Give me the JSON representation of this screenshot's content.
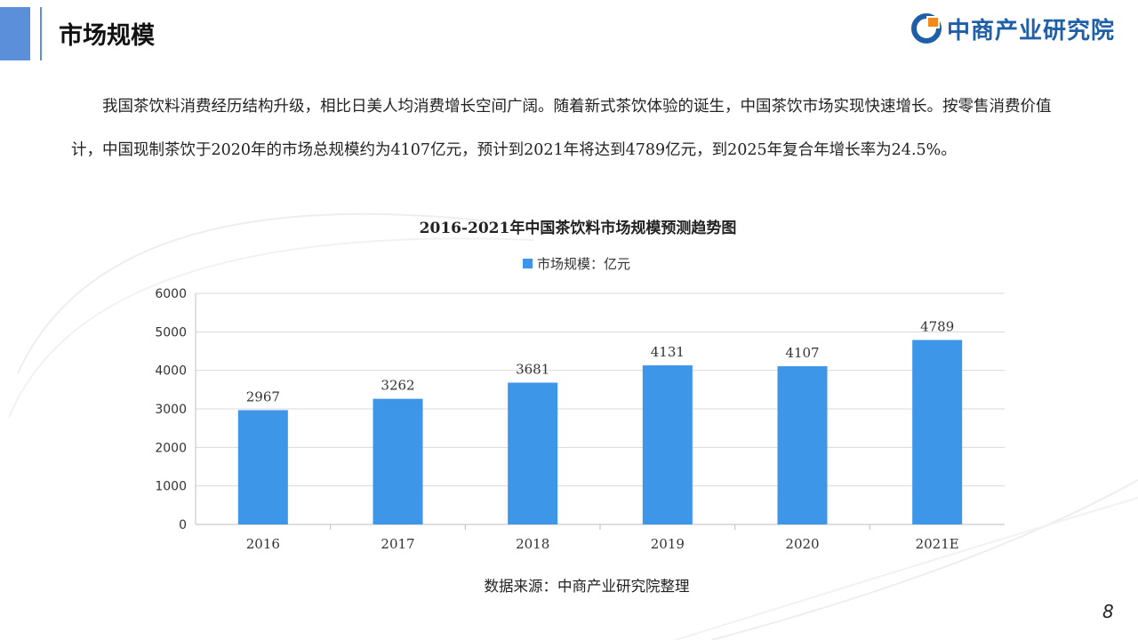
{
  "header": {
    "title": "市场规模",
    "logo_text": "中商产业研究院"
  },
  "intro_text": "我国茶饮料消费经历结构升级，相比日美人均消费增长空间广阔。随着新式茶饮体验的诞生，中国茶饮市场实现快速增长。按零售消费价值计，中国现制茶饮于2020年的市场总规模约为4107亿元，预计到2021年将达到4789亿元，到2025年复合年增长率为24.5%。",
  "chart_data": {
    "type": "bar",
    "title": "2016-2021年中国茶饮料市场规模预测趋势图",
    "categories": [
      "2016",
      "2017",
      "2018",
      "2019",
      "2020",
      "2021E"
    ],
    "series": [
      {
        "name": "市场规模：亿元",
        "values": [
          2967,
          3262,
          3681,
          4131,
          4107,
          4789
        ],
        "color": "#3d96e8"
      }
    ],
    "ylim": [
      0,
      6000
    ],
    "yticks": [
      0,
      1000,
      2000,
      3000,
      4000,
      5000,
      6000
    ],
    "grid": true,
    "legend": "top-center",
    "data_labels": true
  },
  "source": "数据来源：中商产业研究院整理",
  "page_number": "8",
  "colors": {
    "accent": "#5b8fd9",
    "bar": "#3d96e8",
    "logo": "#1f5fa8"
  }
}
